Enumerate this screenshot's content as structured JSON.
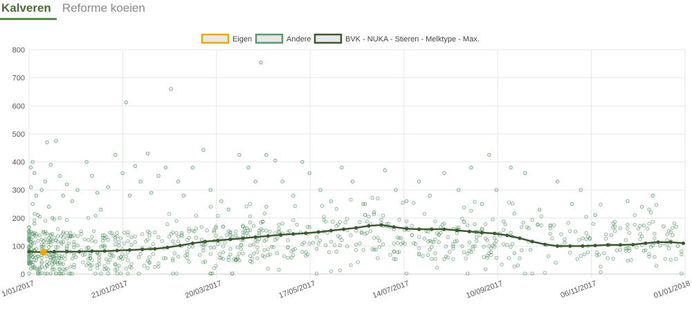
{
  "tabs": [
    {
      "label": "Kalveren",
      "active": true
    },
    {
      "label": "Reforme koeien",
      "active": false
    }
  ],
  "colors": {
    "eigen": "#e8a900",
    "andere": "#5a9a6a",
    "bvk": "#3b5a2e",
    "grid": "#e6e6e6"
  },
  "chart_data": {
    "type": "scatter",
    "title": "",
    "xlabel": "",
    "ylabel": "",
    "ylim": [
      0,
      800
    ],
    "xlim": [
      "2017-01-01",
      "2018-01-01"
    ],
    "yticks": [
      0,
      100,
      200,
      300,
      400,
      500,
      600,
      700,
      800
    ],
    "xticks": [
      "1/01/2017",
      "21/01/2017",
      "20/03/2017",
      "17/05/2017",
      "14/07/2017",
      "10/09/2017",
      "06/11/2017",
      "01/01/2018"
    ],
    "legend": {
      "position": "top-center",
      "items": [
        "Eigen",
        "Andere",
        "BVK - NUKA - Stieren - Melktype - Max."
      ]
    },
    "series": [
      {
        "name": "Eigen",
        "type": "scatter",
        "points": [
          {
            "x": "2017-01-09",
            "y": 78
          }
        ]
      },
      {
        "name": "Andere",
        "type": "scatter",
        "note_points": "dense cloud, representative sample",
        "points": [
          {
            "x": "2017-01-02",
            "y": 380
          },
          {
            "x": "2017-01-03",
            "y": 400
          },
          {
            "x": "2017-01-04",
            "y": 360
          },
          {
            "x": "2017-01-02",
            "y": 310
          },
          {
            "x": "2017-01-05",
            "y": 280
          },
          {
            "x": "2017-01-03",
            "y": 250
          },
          {
            "x": "2017-01-06",
            "y": 210
          },
          {
            "x": "2017-01-04",
            "y": 180
          },
          {
            "x": "2017-01-08",
            "y": 300
          },
          {
            "x": "2017-01-10",
            "y": 330
          },
          {
            "x": "2017-01-12",
            "y": 240
          },
          {
            "x": "2017-01-14",
            "y": 200
          },
          {
            "x": "2017-01-11",
            "y": 470
          },
          {
            "x": "2017-01-16",
            "y": 475
          },
          {
            "x": "2017-01-13",
            "y": 390
          },
          {
            "x": "2017-01-18",
            "y": 350
          },
          {
            "x": "2017-01-20",
            "y": 280
          },
          {
            "x": "2017-01-22",
            "y": 320
          },
          {
            "x": "2017-01-25",
            "y": 260
          },
          {
            "x": "2017-01-28",
            "y": 300
          },
          {
            "x": "2017-02-02",
            "y": 400
          },
          {
            "x": "2017-02-05",
            "y": 350
          },
          {
            "x": "2017-02-08",
            "y": 290
          },
          {
            "x": "2017-02-10",
            "y": 230
          },
          {
            "x": "2017-02-14",
            "y": 310
          },
          {
            "x": "2017-02-18",
            "y": 425
          },
          {
            "x": "2017-02-22",
            "y": 360
          },
          {
            "x": "2017-02-24",
            "y": 612
          },
          {
            "x": "2017-02-26",
            "y": 280
          },
          {
            "x": "2017-03-01",
            "y": 385
          },
          {
            "x": "2017-03-04",
            "y": 330
          },
          {
            "x": "2017-03-08",
            "y": 430
          },
          {
            "x": "2017-03-10",
            "y": 290
          },
          {
            "x": "2017-03-14",
            "y": 350
          },
          {
            "x": "2017-03-18",
            "y": 380
          },
          {
            "x": "2017-03-21",
            "y": 660
          },
          {
            "x": "2017-03-25",
            "y": 330
          },
          {
            "x": "2017-03-28",
            "y": 280
          },
          {
            "x": "2017-04-02",
            "y": 380
          },
          {
            "x": "2017-04-08",
            "y": 443
          },
          {
            "x": "2017-04-12",
            "y": 300
          },
          {
            "x": "2017-04-18",
            "y": 260
          },
          {
            "x": "2017-04-22",
            "y": 230
          },
          {
            "x": "2017-04-28",
            "y": 425
          },
          {
            "x": "2017-05-03",
            "y": 380
          },
          {
            "x": "2017-05-07",
            "y": 330
          },
          {
            "x": "2017-05-10",
            "y": 755
          },
          {
            "x": "2017-05-13",
            "y": 425
          },
          {
            "x": "2017-05-18",
            "y": 405
          },
          {
            "x": "2017-05-22",
            "y": 330
          },
          {
            "x": "2017-05-28",
            "y": 280
          },
          {
            "x": "2017-06-02",
            "y": 400
          },
          {
            "x": "2017-06-06",
            "y": 360
          },
          {
            "x": "2017-06-12",
            "y": 300
          },
          {
            "x": "2017-06-18",
            "y": 260
          },
          {
            "x": "2017-06-24",
            "y": 380
          },
          {
            "x": "2017-06-30",
            "y": 330
          },
          {
            "x": "2017-07-06",
            "y": 250
          },
          {
            "x": "2017-07-12",
            "y": 220
          },
          {
            "x": "2017-07-18",
            "y": 370
          },
          {
            "x": "2017-07-24",
            "y": 300
          },
          {
            "x": "2017-07-30",
            "y": 260
          },
          {
            "x": "2017-08-06",
            "y": 330
          },
          {
            "x": "2017-08-12",
            "y": 280
          },
          {
            "x": "2017-08-20",
            "y": 360
          },
          {
            "x": "2017-08-28",
            "y": 300
          },
          {
            "x": "2017-09-04",
            "y": 380
          },
          {
            "x": "2017-09-10",
            "y": 250
          },
          {
            "x": "2017-09-14",
            "y": 425
          },
          {
            "x": "2017-09-18",
            "y": 300
          },
          {
            "x": "2017-09-26",
            "y": 380
          },
          {
            "x": "2017-10-04",
            "y": 360
          },
          {
            "x": "2017-10-12",
            "y": 230
          },
          {
            "x": "2017-10-22",
            "y": 330
          },
          {
            "x": "2017-10-30",
            "y": 250
          },
          {
            "x": "2017-11-04",
            "y": 300
          },
          {
            "x": "2017-11-12",
            "y": 210
          },
          {
            "x": "2017-11-22",
            "y": 180
          },
          {
            "x": "2017-11-30",
            "y": 260
          },
          {
            "x": "2017-12-08",
            "y": 240
          },
          {
            "x": "2017-12-14",
            "y": 280
          },
          {
            "x": "2017-12-20",
            "y": 170
          },
          {
            "x": "2017-12-28",
            "y": 100
          }
        ]
      },
      {
        "name": "BVK - NUKA - Stieren - Melktype - Max.",
        "type": "line",
        "points": [
          {
            "x": "2017-01-01",
            "y": 80
          },
          {
            "x": "2017-01-08",
            "y": 78
          },
          {
            "x": "2017-01-15",
            "y": 80
          },
          {
            "x": "2017-01-22",
            "y": 80
          },
          {
            "x": "2017-01-29",
            "y": 80
          },
          {
            "x": "2017-02-05",
            "y": 82
          },
          {
            "x": "2017-02-12",
            "y": 82
          },
          {
            "x": "2017-02-19",
            "y": 84
          },
          {
            "x": "2017-02-26",
            "y": 86
          },
          {
            "x": "2017-03-05",
            "y": 88
          },
          {
            "x": "2017-03-12",
            "y": 90
          },
          {
            "x": "2017-03-19",
            "y": 95
          },
          {
            "x": "2017-03-26",
            "y": 102
          },
          {
            "x": "2017-04-02",
            "y": 110
          },
          {
            "x": "2017-04-09",
            "y": 116
          },
          {
            "x": "2017-04-16",
            "y": 120
          },
          {
            "x": "2017-04-23",
            "y": 124
          },
          {
            "x": "2017-04-30",
            "y": 128
          },
          {
            "x": "2017-05-07",
            "y": 132
          },
          {
            "x": "2017-05-14",
            "y": 136
          },
          {
            "x": "2017-05-21",
            "y": 140
          },
          {
            "x": "2017-05-28",
            "y": 143
          },
          {
            "x": "2017-06-04",
            "y": 146
          },
          {
            "x": "2017-06-11",
            "y": 150
          },
          {
            "x": "2017-06-18",
            "y": 155
          },
          {
            "x": "2017-06-25",
            "y": 160
          },
          {
            "x": "2017-07-02",
            "y": 165
          },
          {
            "x": "2017-07-09",
            "y": 172
          },
          {
            "x": "2017-07-16",
            "y": 175
          },
          {
            "x": "2017-07-23",
            "y": 168
          },
          {
            "x": "2017-07-30",
            "y": 162
          },
          {
            "x": "2017-08-06",
            "y": 160
          },
          {
            "x": "2017-08-13",
            "y": 160
          },
          {
            "x": "2017-08-20",
            "y": 160
          },
          {
            "x": "2017-08-27",
            "y": 156
          },
          {
            "x": "2017-09-03",
            "y": 152
          },
          {
            "x": "2017-09-10",
            "y": 148
          },
          {
            "x": "2017-09-17",
            "y": 145
          },
          {
            "x": "2017-09-24",
            "y": 138
          },
          {
            "x": "2017-10-01",
            "y": 128
          },
          {
            "x": "2017-10-08",
            "y": 116
          },
          {
            "x": "2017-10-15",
            "y": 106
          },
          {
            "x": "2017-10-22",
            "y": 100
          },
          {
            "x": "2017-10-29",
            "y": 100
          },
          {
            "x": "2017-11-05",
            "y": 100
          },
          {
            "x": "2017-11-12",
            "y": 102
          },
          {
            "x": "2017-11-19",
            "y": 104
          },
          {
            "x": "2017-11-26",
            "y": 104
          },
          {
            "x": "2017-12-03",
            "y": 105
          },
          {
            "x": "2017-12-10",
            "y": 110
          },
          {
            "x": "2017-12-17",
            "y": 114
          },
          {
            "x": "2017-12-24",
            "y": 114
          },
          {
            "x": "2017-12-31",
            "y": 110
          }
        ]
      }
    ]
  }
}
